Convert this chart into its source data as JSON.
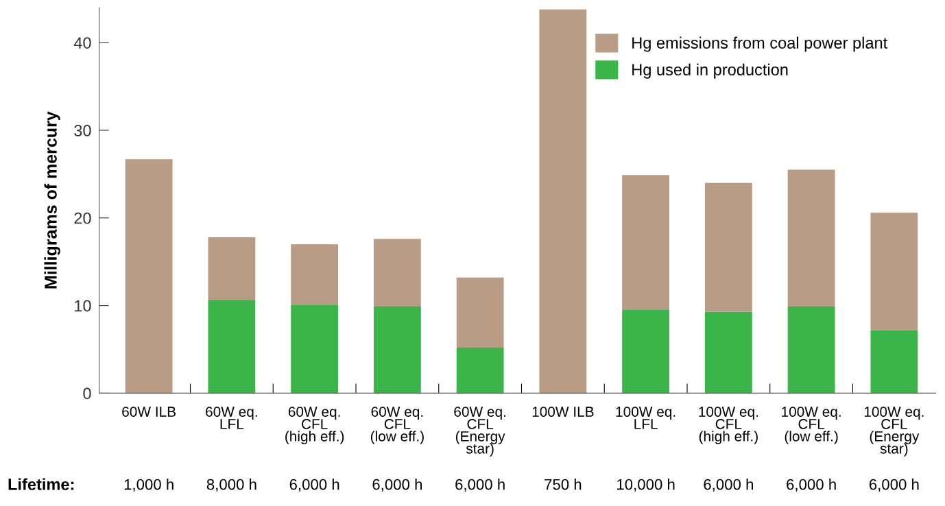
{
  "chart_data": {
    "type": "bar",
    "stacked": true,
    "ylabel": "Milligrams of mercury",
    "categories": [
      "60W ILB",
      "60W eq.\nLFL",
      "60W eq.\nCFL\n(high eff.)",
      "60W eq.\nCFL\n(low eff.)",
      "60W eq.\nCFL\n(Energy\nstar)",
      "100W ILB",
      "100W eq.\nLFL",
      "100W eq.\nCFL\n(high eff.)",
      "100W eq.\nCFL\n(low eff.)",
      "100W eq.\nCFL\n(Energy\nstar)"
    ],
    "series": [
      {
        "name": "Hg used in production",
        "color": "#3bb44a",
        "values": [
          0,
          10.6,
          10.1,
          9.9,
          5.2,
          0,
          9.5,
          9.3,
          9.9,
          7.2
        ]
      },
      {
        "name": "Hg emissions from coal power plant",
        "color": "#b89c86",
        "values": [
          26.7,
          7.2,
          6.9,
          7.7,
          8.0,
          43.8,
          15.4,
          14.7,
          15.6,
          13.4
        ]
      }
    ],
    "ylim": [
      0,
      44
    ],
    "yticks": [
      0,
      10,
      20,
      30,
      40
    ],
    "grid": false,
    "legend": "top right",
    "annotations": [
      "Lifetime:",
      "1,000 h",
      "8,000 h",
      "6,000 h",
      "6,000 h",
      "6,000 h",
      "750 h",
      "10,000 h",
      "6,000 h",
      "6,000 h",
      "6,000 h"
    ]
  }
}
